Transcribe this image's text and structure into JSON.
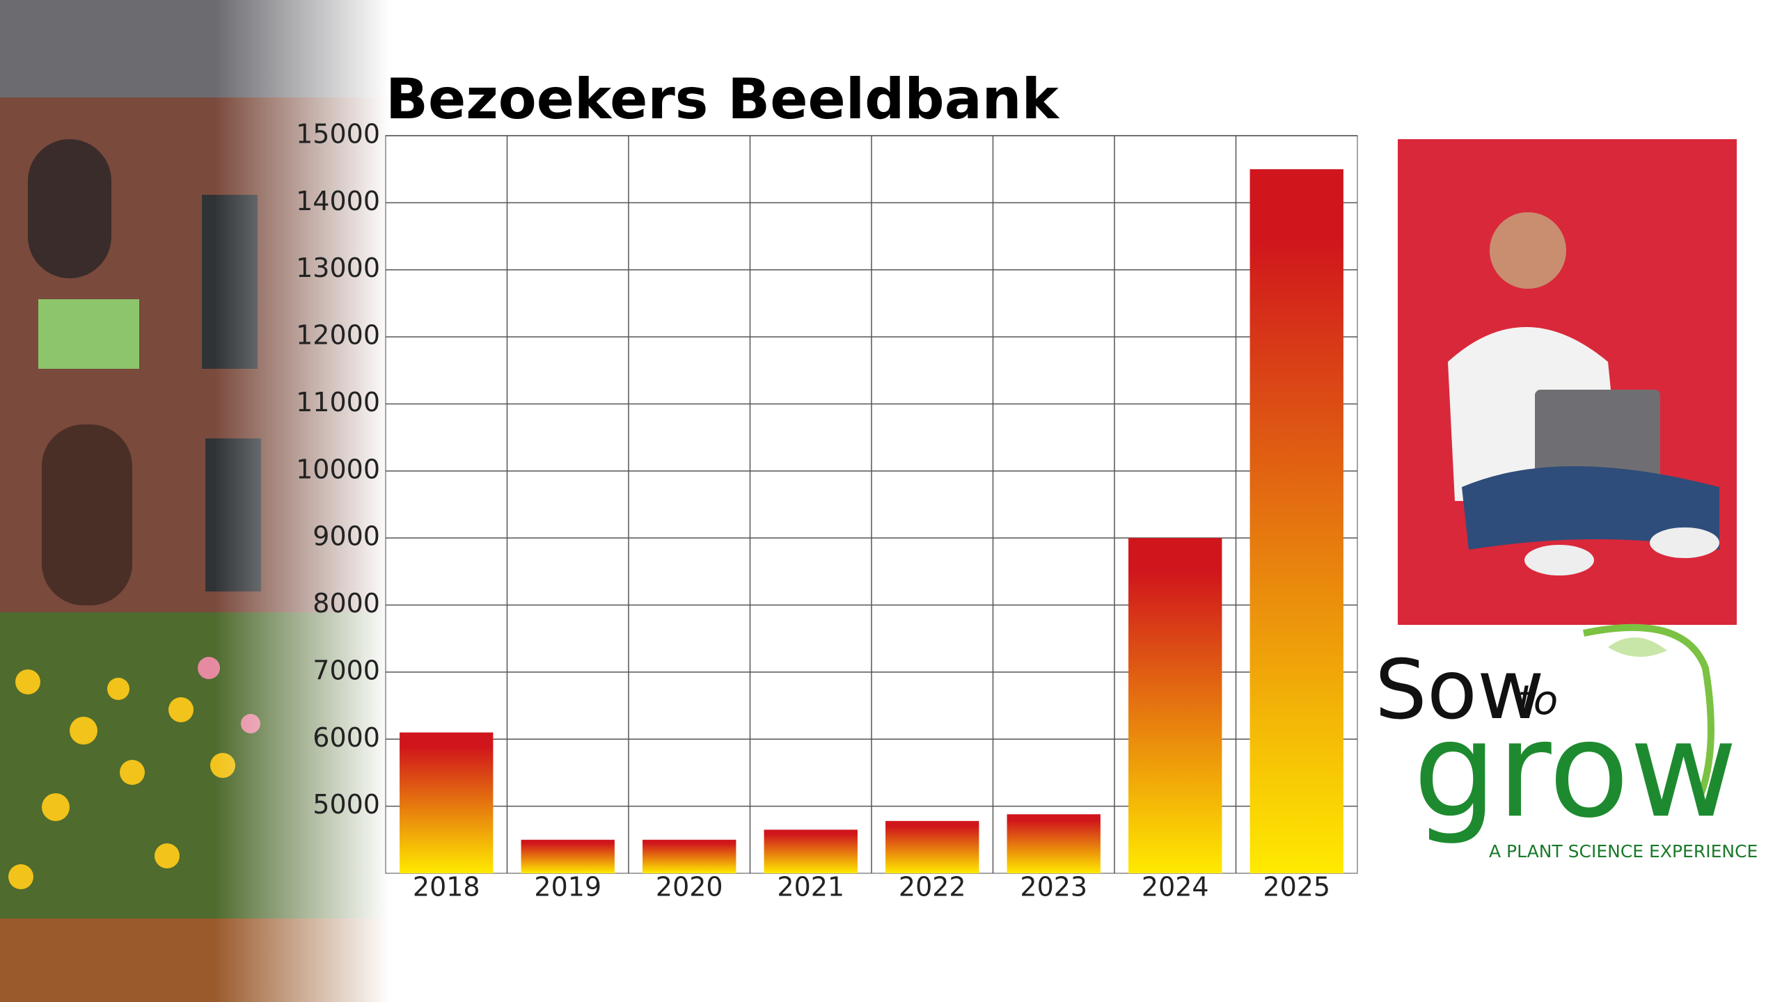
{
  "chart_data": {
    "type": "bar",
    "title": "Bezoekers Beeldbank",
    "categories": [
      "2018",
      "2019",
      "2020",
      "2021",
      "2022",
      "2023",
      "2024",
      "2025"
    ],
    "values": [
      6100,
      4500,
      4500,
      4650,
      4780,
      4880,
      9000,
      14500
    ],
    "colors": [
      "#d0161c",
      "#ffea00"
    ],
    "ylim": [
      4000,
      15000
    ],
    "yticks": [
      5000,
      6000,
      7000,
      8000,
      9000,
      10000,
      11000,
      12000,
      13000,
      14000,
      15000
    ],
    "grid": true
  },
  "logo": {
    "word1": "Sow",
    "word2": "to",
    "word3": "grow",
    "tagline": "A PLANT SCIENCE EXPERIENCE"
  }
}
